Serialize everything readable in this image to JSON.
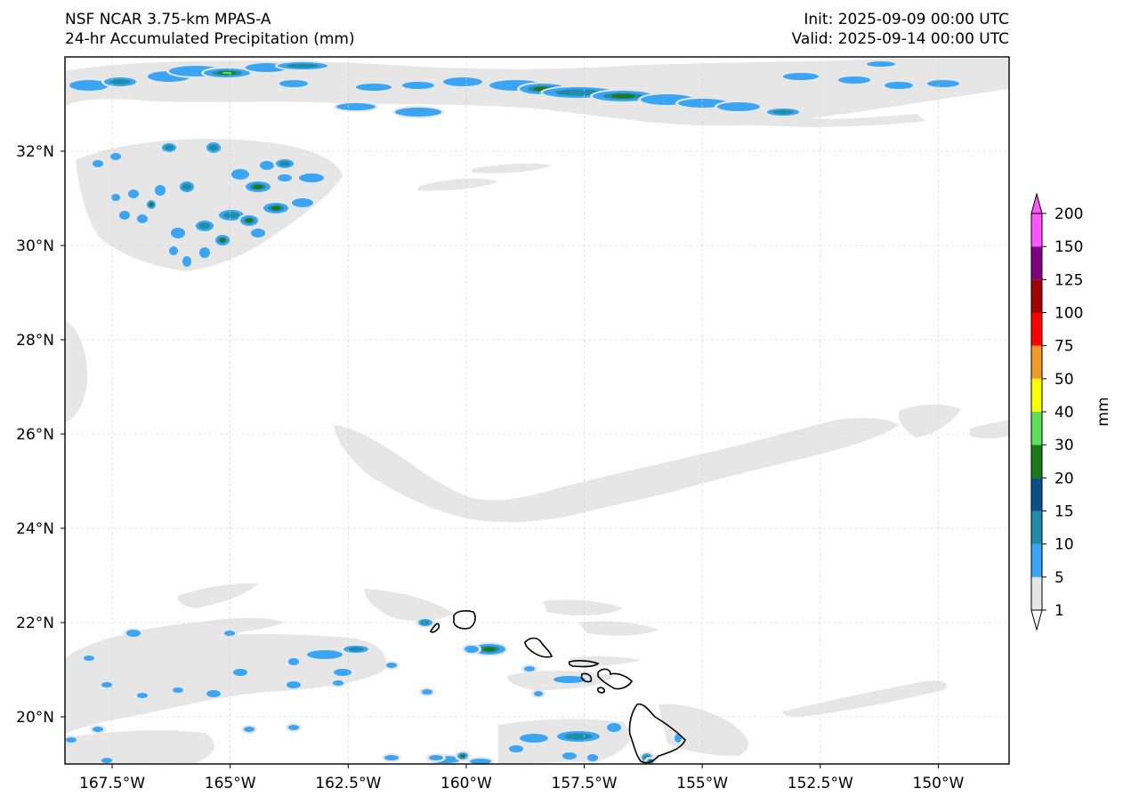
{
  "header": {
    "model": "NSF NCAR 3.75-km MPAS-A",
    "field": "24-hr Accumulated Precipitation (mm)",
    "init": "Init: 2025-09-09 00:00 UTC",
    "valid": "Valid: 2025-09-14 00:00 UTC"
  },
  "map": {
    "lon_range": [
      -168.5,
      -148.5
    ],
    "lat_range": [
      19.0,
      34.0
    ],
    "lon_ticks": [
      -167.5,
      -165,
      -162.5,
      -160,
      -157.5,
      -155,
      -152.5,
      -150
    ],
    "lon_tick_labels": [
      "167.5°W",
      "165°W",
      "162.5°W",
      "160°W",
      "157.5°W",
      "155°W",
      "152.5°W",
      "150°W"
    ],
    "lat_ticks": [
      20,
      22,
      24,
      26,
      28,
      30,
      32
    ],
    "lat_tick_labels": [
      "20°N",
      "22°N",
      "24°N",
      "26°N",
      "28°N",
      "30°N",
      "32°N"
    ],
    "gridlines": true,
    "coastline_color": "#000000",
    "islands": [
      "Kauai",
      "Niihau",
      "Oahu",
      "Molokai",
      "Lanai",
      "Maui",
      "Kahoolawe",
      "Hawaii"
    ]
  },
  "colorbar": {
    "label": "mm",
    "levels": [
      "1",
      "5",
      "10",
      "15",
      "20",
      "30",
      "40",
      "50",
      "75",
      "100",
      "125",
      "150",
      "200"
    ],
    "colors": [
      "#e6e6e6",
      "#3ba5f5",
      "#1f8ca8",
      "#0b4f87",
      "#1c7a1c",
      "#5ce05c",
      "#ffff00",
      "#f09a2a",
      "#ff0000",
      "#a00000",
      "#800080",
      "#ff55ff"
    ],
    "extend": "both"
  }
}
